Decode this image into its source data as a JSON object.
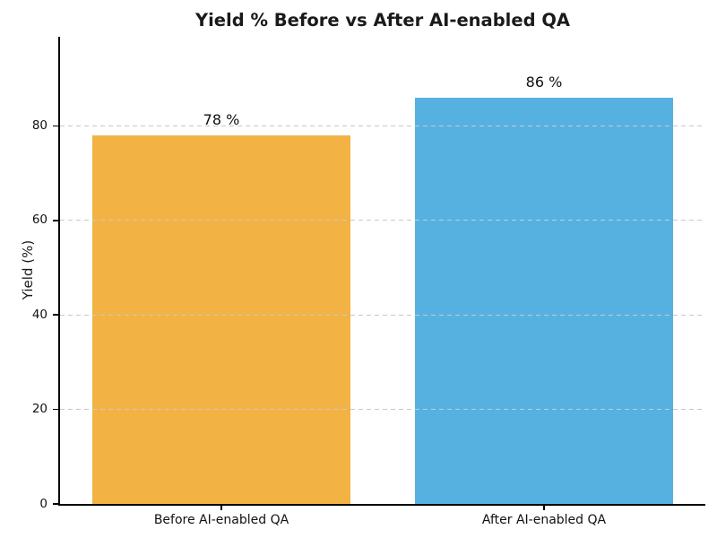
{
  "chart_data": {
    "type": "bar",
    "title": "Yield % Before vs After AI-enabled QA",
    "categories": [
      "Before AI-enabled QA",
      "After AI-enabled QA"
    ],
    "values": [
      78,
      86
    ],
    "value_labels": [
      "78 %",
      "86 %"
    ],
    "xlabel": "",
    "ylabel": "Yield (%)",
    "ylim": [
      0,
      98.9
    ],
    "yticks": [
      0,
      20,
      40,
      60,
      80
    ],
    "bar_colors": [
      "#F2B344",
      "#56B1E1"
    ],
    "grid": "horizontal-dashed",
    "grid_color": "#c9c9c9",
    "axis_color": "#000000",
    "text_color": "#1a1a1a",
    "legend": "none",
    "bar_width_fraction": 0.8
  }
}
